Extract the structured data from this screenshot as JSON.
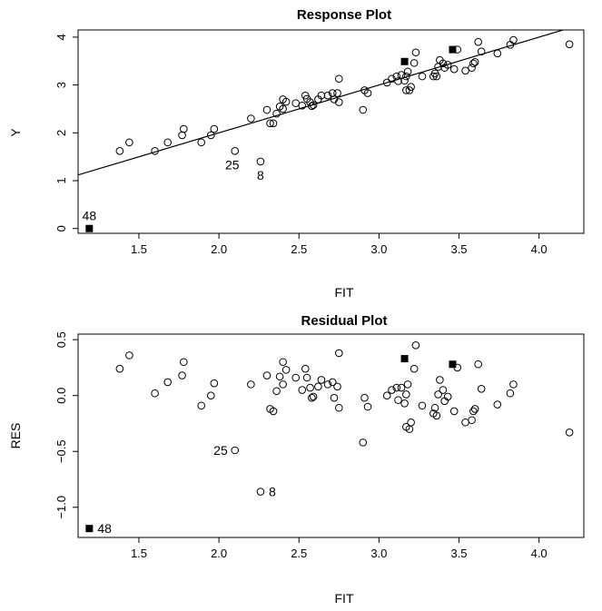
{
  "chart_data": [
    {
      "type": "scatter",
      "title": "Response Plot",
      "xlabel": "FIT",
      "ylabel": "Y",
      "xlim": [
        1.12,
        4.28
      ],
      "ylim": [
        -0.1,
        4.15
      ],
      "xticks": [
        1.5,
        2.0,
        2.5,
        3.0,
        3.5,
        4.0
      ],
      "xtick_labels": [
        "1.5",
        "2.0",
        "2.5",
        "3.0",
        "3.5",
        "4.0"
      ],
      "yticks": [
        0,
        1,
        2,
        3,
        4
      ],
      "ytick_labels": [
        "0",
        "1",
        "2",
        "3",
        "4"
      ],
      "reference_line": {
        "slope": 1,
        "intercept": 0
      },
      "grid": false,
      "points": [
        {
          "x": 1.38,
          "y": 1.62
        },
        {
          "x": 1.44,
          "y": 1.8
        },
        {
          "x": 1.6,
          "y": 1.62
        },
        {
          "x": 1.68,
          "y": 1.8
        },
        {
          "x": 1.77,
          "y": 1.95
        },
        {
          "x": 1.78,
          "y": 2.08
        },
        {
          "x": 1.89,
          "y": 1.8
        },
        {
          "x": 1.95,
          "y": 1.95
        },
        {
          "x": 1.97,
          "y": 2.08
        },
        {
          "x": 2.2,
          "y": 2.3
        },
        {
          "x": 2.3,
          "y": 2.48
        },
        {
          "x": 2.32,
          "y": 2.2
        },
        {
          "x": 2.34,
          "y": 2.2
        },
        {
          "x": 2.36,
          "y": 2.4
        },
        {
          "x": 2.38,
          "y": 2.55
        },
        {
          "x": 2.4,
          "y": 2.7
        },
        {
          "x": 2.42,
          "y": 2.65
        },
        {
          "x": 2.4,
          "y": 2.5
        },
        {
          "x": 2.48,
          "y": 2.62
        },
        {
          "x": 2.52,
          "y": 2.57
        },
        {
          "x": 2.54,
          "y": 2.78
        },
        {
          "x": 2.55,
          "y": 2.71
        },
        {
          "x": 2.57,
          "y": 2.64
        },
        {
          "x": 2.58,
          "y": 2.56
        },
        {
          "x": 2.59,
          "y": 2.58
        },
        {
          "x": 2.62,
          "y": 2.7
        },
        {
          "x": 2.64,
          "y": 2.78
        },
        {
          "x": 2.68,
          "y": 2.78
        },
        {
          "x": 2.71,
          "y": 2.83
        },
        {
          "x": 2.72,
          "y": 2.7
        },
        {
          "x": 2.74,
          "y": 2.83
        },
        {
          "x": 2.75,
          "y": 2.64
        },
        {
          "x": 2.75,
          "y": 3.13
        },
        {
          "x": 2.9,
          "y": 2.48
        },
        {
          "x": 2.91,
          "y": 2.89
        },
        {
          "x": 2.93,
          "y": 2.83
        },
        {
          "x": 3.05,
          "y": 3.05
        },
        {
          "x": 3.08,
          "y": 3.13
        },
        {
          "x": 3.11,
          "y": 3.18
        },
        {
          "x": 3.12,
          "y": 3.08
        },
        {
          "x": 3.14,
          "y": 3.21
        },
        {
          "x": 3.16,
          "y": 3.09
        },
        {
          "x": 3.17,
          "y": 3.18
        },
        {
          "x": 3.18,
          "y": 3.28
        },
        {
          "x": 3.17,
          "y": 2.89
        },
        {
          "x": 3.19,
          "y": 2.89
        },
        {
          "x": 3.2,
          "y": 2.96
        },
        {
          "x": 3.22,
          "y": 3.46
        },
        {
          "x": 3.23,
          "y": 3.68
        },
        {
          "x": 3.27,
          "y": 3.18
        },
        {
          "x": 3.34,
          "y": 3.18
        },
        {
          "x": 3.35,
          "y": 3.24
        },
        {
          "x": 3.36,
          "y": 3.18
        },
        {
          "x": 3.37,
          "y": 3.38
        },
        {
          "x": 3.38,
          "y": 3.52
        },
        {
          "x": 3.4,
          "y": 3.45
        },
        {
          "x": 3.41,
          "y": 3.36
        },
        {
          "x": 3.43,
          "y": 3.42
        },
        {
          "x": 3.47,
          "y": 3.33
        },
        {
          "x": 3.49,
          "y": 3.74
        },
        {
          "x": 3.54,
          "y": 3.3
        },
        {
          "x": 3.58,
          "y": 3.36
        },
        {
          "x": 3.59,
          "y": 3.45
        },
        {
          "x": 3.6,
          "y": 3.48
        },
        {
          "x": 3.62,
          "y": 3.9
        },
        {
          "x": 3.64,
          "y": 3.7
        },
        {
          "x": 3.74,
          "y": 3.66
        },
        {
          "x": 3.82,
          "y": 3.84
        },
        {
          "x": 3.84,
          "y": 3.94
        },
        {
          "x": 4.19,
          "y": 3.85
        },
        {
          "x": 2.1,
          "y": 1.62
        },
        {
          "x": 2.26,
          "y": 1.4
        }
      ],
      "highlighted_points": [
        {
          "x": 1.19,
          "y": 0.0
        },
        {
          "x": 3.16,
          "y": 3.49
        },
        {
          "x": 3.46,
          "y": 3.74
        }
      ],
      "annotations": [
        {
          "text": "48",
          "x": 1.19,
          "y": 0.0,
          "anchor": "above"
        },
        {
          "text": "25",
          "x": 2.1,
          "y": 1.62,
          "anchor": "below-left"
        },
        {
          "text": "8",
          "x": 2.26,
          "y": 1.4,
          "anchor": "below"
        }
      ]
    },
    {
      "type": "scatter",
      "title": "Residual Plot",
      "xlabel": "FIT",
      "ylabel": "RES",
      "xlim": [
        1.12,
        4.28
      ],
      "ylim": [
        -1.27,
        0.55
      ],
      "xticks": [
        1.5,
        2.0,
        2.5,
        3.0,
        3.5,
        4.0
      ],
      "xtick_labels": [
        "1.5",
        "2.0",
        "2.5",
        "3.0",
        "3.5",
        "4.0"
      ],
      "yticks": [
        -1.0,
        -0.5,
        0.0,
        0.5
      ],
      "ytick_labels": [
        "−1.0",
        "−0.5",
        "0.0",
        "0.5"
      ],
      "grid": false,
      "points": [
        {
          "x": 1.38,
          "y": 0.24
        },
        {
          "x": 1.44,
          "y": 0.36
        },
        {
          "x": 1.6,
          "y": 0.02
        },
        {
          "x": 1.68,
          "y": 0.12
        },
        {
          "x": 1.77,
          "y": 0.18
        },
        {
          "x": 1.78,
          "y": 0.3
        },
        {
          "x": 1.89,
          "y": -0.09
        },
        {
          "x": 1.95,
          "y": 0.0
        },
        {
          "x": 1.97,
          "y": 0.11
        },
        {
          "x": 2.2,
          "y": 0.1
        },
        {
          "x": 2.3,
          "y": 0.18
        },
        {
          "x": 2.32,
          "y": -0.12
        },
        {
          "x": 2.34,
          "y": -0.14
        },
        {
          "x": 2.36,
          "y": 0.04
        },
        {
          "x": 2.38,
          "y": 0.17
        },
        {
          "x": 2.4,
          "y": 0.3
        },
        {
          "x": 2.42,
          "y": 0.23
        },
        {
          "x": 2.4,
          "y": 0.1
        },
        {
          "x": 2.48,
          "y": 0.16
        },
        {
          "x": 2.52,
          "y": 0.05
        },
        {
          "x": 2.54,
          "y": 0.24
        },
        {
          "x": 2.55,
          "y": 0.16
        },
        {
          "x": 2.57,
          "y": 0.07
        },
        {
          "x": 2.58,
          "y": -0.02
        },
        {
          "x": 2.59,
          "y": -0.01
        },
        {
          "x": 2.62,
          "y": 0.08
        },
        {
          "x": 2.64,
          "y": 0.14
        },
        {
          "x": 2.68,
          "y": 0.1
        },
        {
          "x": 2.71,
          "y": 0.12
        },
        {
          "x": 2.72,
          "y": -0.02
        },
        {
          "x": 2.74,
          "y": 0.08
        },
        {
          "x": 2.75,
          "y": -0.11
        },
        {
          "x": 2.75,
          "y": 0.38
        },
        {
          "x": 2.9,
          "y": -0.42
        },
        {
          "x": 2.91,
          "y": -0.02
        },
        {
          "x": 2.93,
          "y": -0.1
        },
        {
          "x": 3.05,
          "y": 0.0
        },
        {
          "x": 3.08,
          "y": 0.05
        },
        {
          "x": 3.11,
          "y": 0.07
        },
        {
          "x": 3.12,
          "y": -0.04
        },
        {
          "x": 3.14,
          "y": 0.07
        },
        {
          "x": 3.16,
          "y": -0.07
        },
        {
          "x": 3.17,
          "y": 0.01
        },
        {
          "x": 3.18,
          "y": 0.1
        },
        {
          "x": 3.17,
          "y": -0.28
        },
        {
          "x": 3.19,
          "y": -0.3
        },
        {
          "x": 3.2,
          "y": -0.24
        },
        {
          "x": 3.22,
          "y": 0.24
        },
        {
          "x": 3.23,
          "y": 0.45
        },
        {
          "x": 3.27,
          "y": -0.09
        },
        {
          "x": 3.34,
          "y": -0.16
        },
        {
          "x": 3.35,
          "y": -0.11
        },
        {
          "x": 3.36,
          "y": -0.18
        },
        {
          "x": 3.37,
          "y": 0.01
        },
        {
          "x": 3.38,
          "y": 0.14
        },
        {
          "x": 3.4,
          "y": 0.05
        },
        {
          "x": 3.41,
          "y": -0.05
        },
        {
          "x": 3.43,
          "y": -0.01
        },
        {
          "x": 3.47,
          "y": -0.14
        },
        {
          "x": 3.49,
          "y": 0.25
        },
        {
          "x": 3.54,
          "y": -0.24
        },
        {
          "x": 3.58,
          "y": -0.22
        },
        {
          "x": 3.59,
          "y": -0.14
        },
        {
          "x": 3.6,
          "y": -0.12
        },
        {
          "x": 3.62,
          "y": 0.28
        },
        {
          "x": 3.64,
          "y": 0.06
        },
        {
          "x": 3.74,
          "y": -0.08
        },
        {
          "x": 3.82,
          "y": 0.02
        },
        {
          "x": 3.84,
          "y": 0.1
        },
        {
          "x": 4.19,
          "y": -0.33
        },
        {
          "x": 2.1,
          "y": -0.49
        },
        {
          "x": 2.26,
          "y": -0.86
        }
      ],
      "highlighted_points": [
        {
          "x": 1.19,
          "y": -1.19
        },
        {
          "x": 3.16,
          "y": 0.33
        },
        {
          "x": 3.46,
          "y": 0.28
        }
      ],
      "annotations": [
        {
          "text": "48",
          "x": 1.19,
          "y": -1.19,
          "anchor": "right"
        },
        {
          "text": "25",
          "x": 2.1,
          "y": -0.49,
          "anchor": "left"
        },
        {
          "text": "8",
          "x": 2.26,
          "y": -0.86,
          "anchor": "right"
        }
      ]
    }
  ]
}
